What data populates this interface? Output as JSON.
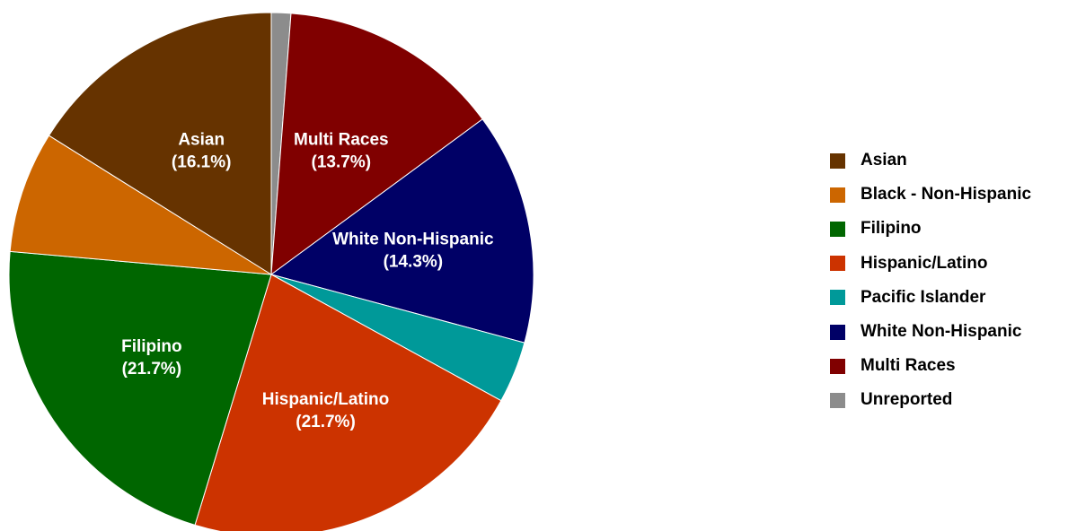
{
  "chart_data": {
    "type": "pie",
    "title": "",
    "legend_position": "right",
    "slices": [
      {
        "name": "Unreported",
        "value": 1.2,
        "color": "#8c8c8c",
        "label": "",
        "pct": ""
      },
      {
        "name": "Multi Races",
        "value": 13.7,
        "color": "#800000",
        "label": "Multi Races",
        "pct": "(13.7%)"
      },
      {
        "name": "White Non-Hispanic",
        "value": 14.3,
        "color": "#000066",
        "label": "White Non-Hispanic",
        "pct": "(14.3%)"
      },
      {
        "name": "Pacific Islander",
        "value": 3.8,
        "color": "#009999",
        "label": "",
        "pct": ""
      },
      {
        "name": "Hispanic/Latino",
        "value": 21.7,
        "color": "#cc3300",
        "label": "Hispanic/Latino",
        "pct": "(21.7%)"
      },
      {
        "name": "Filipino",
        "value": 21.7,
        "color": "#006600",
        "label": "Filipino",
        "pct": "(21.7%)"
      },
      {
        "name": "Black - Non-Hispanic",
        "value": 7.5,
        "color": "#cc6600",
        "label": "",
        "pct": ""
      },
      {
        "name": "Asian",
        "value": 16.1,
        "color": "#663300",
        "label": "Asian",
        "pct": "(16.1%)"
      }
    ],
    "legend": [
      {
        "name": "Asian",
        "color": "#663300"
      },
      {
        "name": "Black - Non-Hispanic",
        "color": "#cc6600"
      },
      {
        "name": "Filipino",
        "color": "#006600"
      },
      {
        "name": "Hispanic/Latino",
        "color": "#cc3300"
      },
      {
        "name": "Pacific Islander",
        "color": "#009999"
      },
      {
        "name": "White Non-Hispanic",
        "color": "#000066"
      },
      {
        "name": "Multi Races",
        "color": "#800000"
      },
      {
        "name": "Unreported",
        "color": "#8c8c8c"
      }
    ]
  }
}
